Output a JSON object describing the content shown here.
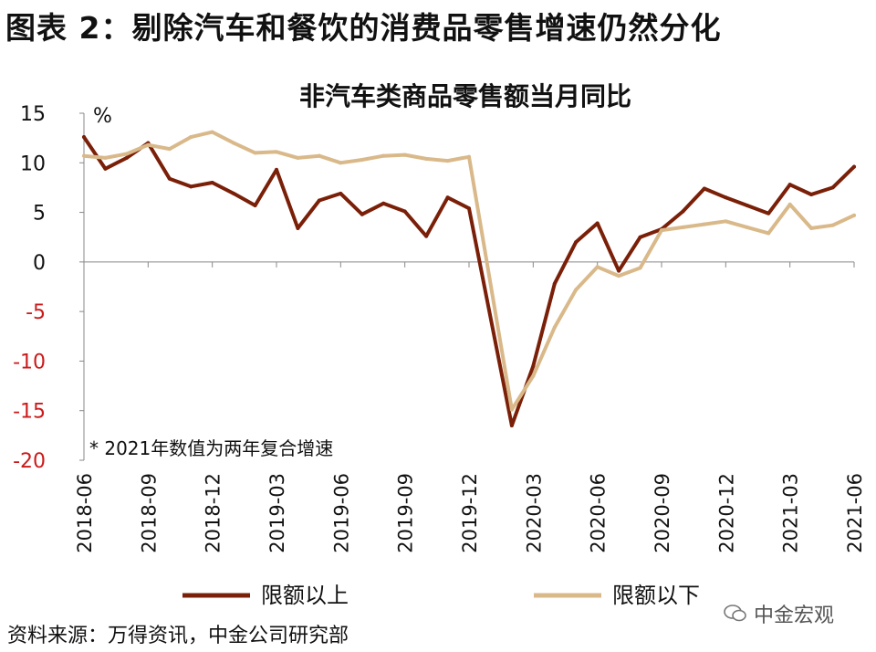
{
  "figure_title": "图表 2：剔除汽车和餐饮的消费品零售增速仍然分化",
  "source": "资料来源：万得资讯，中金公司研究部",
  "watermark": "中金宏观",
  "icons": [
    "wechat-icon"
  ],
  "colors": {
    "series1": "#7a1f08",
    "series2": "#d9b98a",
    "negative_tick": "#cc1a1a",
    "axis": "#888888"
  },
  "chart_data": {
    "type": "line",
    "title": "非汽车类商品零售额当月同比",
    "unit": "%",
    "note": "* 2021年数值为两年复合增速",
    "ylim": [
      -20,
      15
    ],
    "yticks": [
      15,
      10,
      5,
      0,
      -5,
      -10,
      -15,
      -20
    ],
    "x": [
      "2018-06",
      "2018-07",
      "2018-08",
      "2018-09",
      "2018-10",
      "2018-11",
      "2018-12",
      "2019-01",
      "2019-02",
      "2019-03",
      "2019-04",
      "2019-05",
      "2019-06",
      "2019-07",
      "2019-08",
      "2019-09",
      "2019-10",
      "2019-11",
      "2019-12",
      "2020-01",
      "2020-02",
      "2020-03",
      "2020-04",
      "2020-05",
      "2020-06",
      "2020-07",
      "2020-08",
      "2020-09",
      "2020-10",
      "2020-11",
      "2020-12",
      "2021-01",
      "2021-02",
      "2021-03",
      "2021-04",
      "2021-05",
      "2021-06"
    ],
    "xtick_labels": [
      "2018-06",
      "2018-09",
      "2018-12",
      "2019-03",
      "2019-06",
      "2019-09",
      "2019-12",
      "2020-03",
      "2020-06",
      "2020-09",
      "2020-12",
      "2021-03",
      "2021-06"
    ],
    "series": [
      {
        "name": "限额以上",
        "color": "#7a1f08",
        "values": [
          12.6,
          9.4,
          10.5,
          12.0,
          8.4,
          7.6,
          8.0,
          6.9,
          5.7,
          9.3,
          3.4,
          6.2,
          6.9,
          4.8,
          5.9,
          5.1,
          2.6,
          6.5,
          5.4,
          null,
          -16.5,
          -10.5,
          -2.2,
          2.0,
          3.9,
          -0.9,
          2.5,
          3.3,
          5.1,
          7.4,
          6.5,
          5.7,
          4.9,
          7.8,
          6.8,
          7.5,
          9.6
        ]
      },
      {
        "name": "限额以下",
        "color": "#d9b98a",
        "values": [
          10.7,
          10.5,
          10.9,
          11.8,
          11.4,
          12.6,
          13.1,
          12.0,
          11.0,
          11.1,
          10.5,
          10.7,
          10.0,
          10.3,
          10.7,
          10.8,
          10.4,
          10.2,
          10.6,
          null,
          -14.9,
          -11.5,
          -6.6,
          -2.8,
          -0.5,
          -1.4,
          -0.6,
          3.2,
          3.5,
          3.8,
          4.1,
          3.5,
          2.9,
          5.8,
          3.4,
          3.7,
          4.7
        ]
      }
    ]
  }
}
